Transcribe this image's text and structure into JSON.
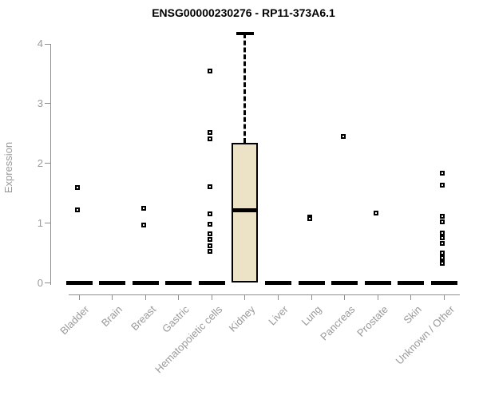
{
  "chart_data": {
    "type": "boxplot",
    "title": "ENSG00000230276 - RP11-373A6.1",
    "ylabel": "Expression",
    "xlabel": "",
    "ylim": [
      0,
      4
    ],
    "yticks": [
      0,
      1,
      2,
      3,
      4
    ],
    "grid": false,
    "legend": "none",
    "categories": [
      "Bladder",
      "Brain",
      "Breast",
      "Gastric",
      "Hematopoietic cells",
      "Kidney",
      "Liver",
      "Lung",
      "Pancreas",
      "Prostate",
      "Skin",
      "Unknown / Other"
    ],
    "series": [
      {
        "category": "Bladder",
        "q1": 0,
        "median": 0,
        "q3": 0,
        "whisker_low": 0,
        "whisker_high": 0,
        "outliers": [
          1.6,
          1.22
        ]
      },
      {
        "category": "Brain",
        "q1": 0,
        "median": 0,
        "q3": 0,
        "whisker_low": 0,
        "whisker_high": 0,
        "outliers": []
      },
      {
        "category": "Breast",
        "q1": 0,
        "median": 0,
        "q3": 0,
        "whisker_low": 0,
        "whisker_high": 0,
        "outliers": [
          1.25,
          0.97
        ]
      },
      {
        "category": "Gastric",
        "q1": 0,
        "median": 0,
        "q3": 0,
        "whisker_low": 0,
        "whisker_high": 0,
        "outliers": []
      },
      {
        "category": "Hematopoietic cells",
        "q1": 0,
        "median": 0,
        "q3": 0,
        "whisker_low": 0,
        "whisker_high": 0,
        "outliers": [
          3.55,
          2.52,
          2.41,
          1.61,
          1.16,
          0.98,
          0.82,
          0.73,
          0.62,
          0.53
        ]
      },
      {
        "category": "Kidney",
        "q1": 0,
        "median": 1.22,
        "q3": 2.35,
        "whisker_low": 0,
        "whisker_high": 4.17,
        "outliers": []
      },
      {
        "category": "Liver",
        "q1": 0,
        "median": 0,
        "q3": 0,
        "whisker_low": 0,
        "whisker_high": 0,
        "outliers": []
      },
      {
        "category": "Lung",
        "q1": 0,
        "median": 0,
        "q3": 0,
        "whisker_low": 0,
        "whisker_high": 0,
        "outliers": [
          1.1,
          1.08
        ]
      },
      {
        "category": "Pancreas",
        "q1": 0,
        "median": 0,
        "q3": 0,
        "whisker_low": 0,
        "whisker_high": 0,
        "outliers": [
          2.45
        ]
      },
      {
        "category": "Prostate",
        "q1": 0,
        "median": 0,
        "q3": 0,
        "whisker_low": 0,
        "whisker_high": 0,
        "outliers": [
          1.17
        ]
      },
      {
        "category": "Skin",
        "q1": 0,
        "median": 0,
        "q3": 0,
        "whisker_low": 0,
        "whisker_high": 0,
        "outliers": []
      },
      {
        "category": "Unknown / Other",
        "q1": 0,
        "median": 0,
        "q3": 0,
        "whisker_low": 0,
        "whisker_high": 0,
        "outliers": [
          1.83,
          1.63,
          1.12,
          1.02,
          0.84,
          0.75,
          0.66,
          0.5,
          0.42,
          0.36,
          0.33
        ]
      }
    ],
    "colors": {
      "box_fill": "#ece3c7",
      "box_border": "#000000",
      "median": "#000000",
      "whisker": "#000000",
      "outlier_border": "#000000",
      "outlier_fill": "#ffffff",
      "axis": "#8f8f8f",
      "tick_text": "#999999",
      "title_text": "#000000",
      "background": "#ffffff"
    }
  }
}
